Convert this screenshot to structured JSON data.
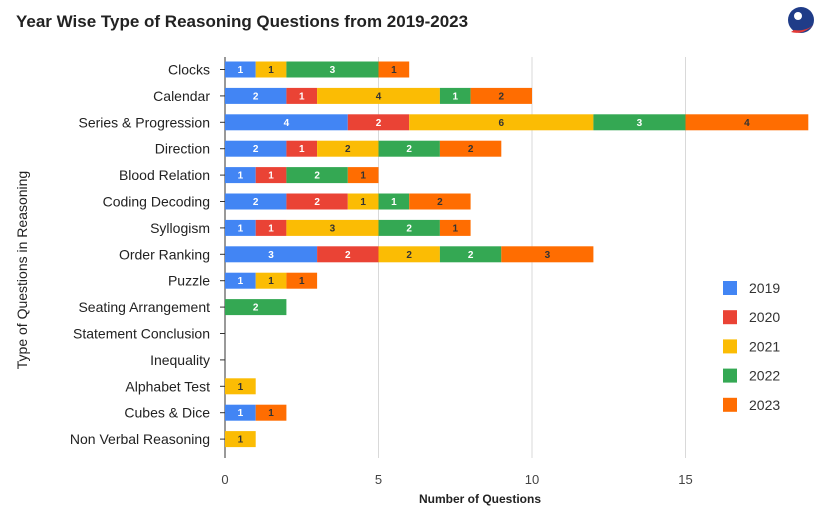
{
  "chart_data": {
    "type": "bar",
    "orientation": "horizontal",
    "stacked": true,
    "title": "Year Wise Type of Reasoning Questions from 2019-2023",
    "xlabel": "Number of Questions",
    "ylabel": "Type of Questions in Reasoning",
    "xlim": [
      0,
      19.5
    ],
    "xticks": [
      0,
      5,
      10,
      15
    ],
    "grid": true,
    "legend_position": "right",
    "categories": [
      "Clocks",
      "Calendar",
      "Series & Progression",
      "Direction",
      "Blood Relation",
      "Coding Decoding",
      "Syllogism",
      "Order Ranking",
      "Puzzle",
      "Seating Arrangement",
      "Statement Conclusion",
      "Inequality",
      "Alphabet Test",
      "Cubes & Dice",
      "Non Verbal Reasoning"
    ],
    "series": [
      {
        "name": "2019",
        "color": "#4285f4",
        "label_color": "#ffffff",
        "values": [
          1,
          2,
          4,
          2,
          1,
          2,
          1,
          3,
          1,
          0,
          0,
          0,
          0,
          1,
          0
        ]
      },
      {
        "name": "2020",
        "color": "#ea4335",
        "label_color": "#ffffff",
        "values": [
          0,
          1,
          2,
          1,
          1,
          2,
          1,
          2,
          0,
          0,
          0,
          0,
          0,
          0,
          0
        ]
      },
      {
        "name": "2021",
        "color": "#fbbc04",
        "label_color": "#333333",
        "values": [
          1,
          4,
          6,
          2,
          0,
          1,
          3,
          2,
          1,
          0,
          0,
          0,
          1,
          0,
          1
        ]
      },
      {
        "name": "2022",
        "color": "#34a853",
        "label_color": "#ffffff",
        "values": [
          3,
          1,
          3,
          2,
          2,
          1,
          2,
          2,
          0,
          2,
          0,
          0,
          0,
          0,
          0
        ]
      },
      {
        "name": "2023",
        "color": "#ff6d01",
        "label_color": "#333333",
        "values": [
          1,
          2,
          4,
          2,
          1,
          2,
          1,
          3,
          1,
          0,
          0,
          0,
          0,
          1,
          0
        ]
      }
    ]
  }
}
